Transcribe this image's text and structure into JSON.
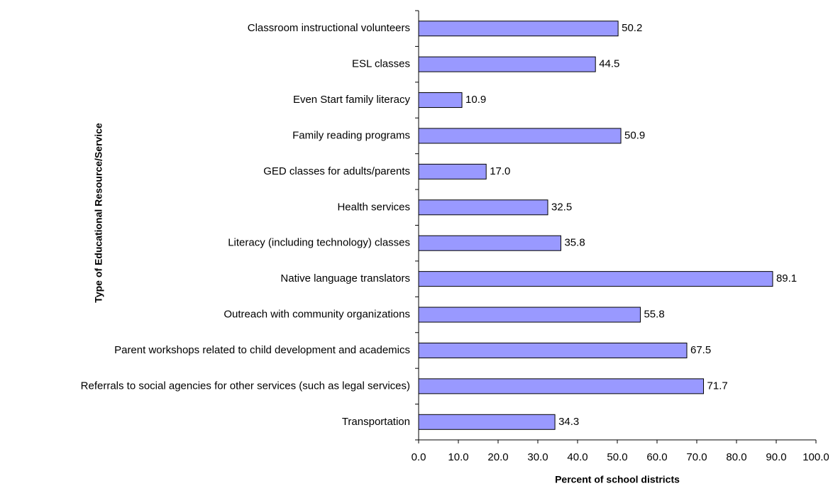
{
  "chart_data": {
    "type": "bar",
    "orientation": "horizontal",
    "x_label": "Percent of school districts",
    "y_label": "Type of Educational Resource/Service",
    "categories": [
      "Classroom instructional volunteers",
      "ESL classes",
      "Even Start family literacy",
      "Family reading programs",
      "GED classes for adults/parents",
      "Health services",
      "Literacy (including technology) classes",
      "Native language translators",
      "Outreach with community organizations",
      "Parent workshops related to child development and academics",
      "Referrals to social agencies for other services (such as legal services)",
      "Transportation"
    ],
    "values": [
      50.2,
      44.5,
      10.9,
      50.9,
      17.0,
      32.5,
      35.8,
      89.1,
      55.8,
      67.5,
      71.7,
      34.3
    ],
    "value_labels": [
      "50.2",
      "44.5",
      "10.9",
      "50.9",
      "17.0",
      "32.5",
      "35.8",
      "89.1",
      "55.8",
      "67.5",
      "71.7",
      "34.3"
    ],
    "color": "#9999ff",
    "xlim": [
      0,
      100
    ],
    "xticks": [
      {
        "value": 0,
        "label": "0.0"
      },
      {
        "value": 10,
        "label": "10.0"
      },
      {
        "value": 20,
        "label": "20.0"
      },
      {
        "value": 30,
        "label": "30.0"
      },
      {
        "value": 40,
        "label": "40.0"
      },
      {
        "value": 50,
        "label": "50.0"
      },
      {
        "value": 60,
        "label": "60.0"
      },
      {
        "value": 70,
        "label": "70.0"
      },
      {
        "value": 80,
        "label": "80.0"
      },
      {
        "value": 90,
        "label": "90.0"
      },
      {
        "value": 100,
        "label": "100.0"
      }
    ],
    "grid": false
  }
}
